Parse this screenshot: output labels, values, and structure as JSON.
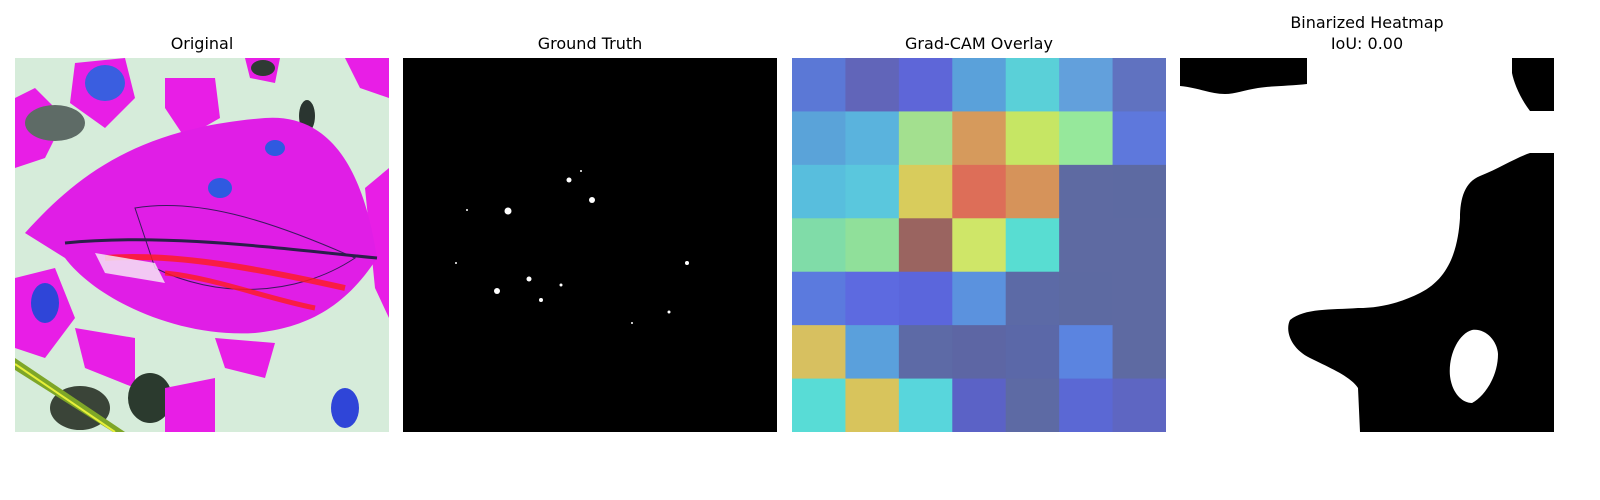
{
  "panels": [
    {
      "title": "Original"
    },
    {
      "title": "Ground Truth"
    },
    {
      "title": "Grad-CAM Overlay"
    },
    {
      "title_line1": "Binarized Heatmap",
      "title_line2": "IoU: 0.00"
    }
  ],
  "gradcam_grid": [
    [
      "#5b78d6",
      "#6165b9",
      "#5e66d8",
      "#5aa1da",
      "#5ad0d8",
      "#62a0dc",
      "#6072c0"
    ],
    [
      "#5aa3d9",
      "#5ab3dd",
      "#a3e08f",
      "#d69a5c",
      "#c6e664",
      "#96e89b",
      "#5e78dc"
    ],
    [
      "#58bedd",
      "#5ac7dd",
      "#d8cc5c",
      "#dd6e58",
      "#d6935a",
      "#5e6aa2",
      "#5d6aa2"
    ],
    [
      "#80dca8",
      "#90e09a",
      "#9a6460",
      "#cfe668",
      "#58ddd2",
      "#5e6aa2",
      "#5e6aa2"
    ],
    [
      "#5b7ade",
      "#5d6ae0",
      "#5b66dc",
      "#5b92de",
      "#5c6aa6",
      "#5d6aa2",
      "#5e6aa2"
    ],
    [
      "#d7c060",
      "#5aa0dc",
      "#5d6aa6",
      "#5d66a4",
      "#5b68a8",
      "#5b84e0",
      "#5e6aa2"
    ],
    [
      "#58dcd6",
      "#d8c45c",
      "#58d6dc",
      "#5b62c6",
      "#5d6aa4",
      "#5b68d4",
      "#5e66c2"
    ]
  ],
  "colors": {
    "background": "#ffffff",
    "mask_black": "#000000",
    "mask_white": "#ffffff",
    "leaf_magenta": "#e01ee6"
  }
}
